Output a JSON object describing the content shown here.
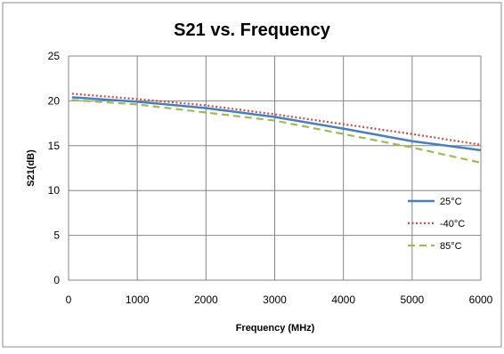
{
  "chart_data": {
    "type": "line",
    "title": "S21 vs. Frequency",
    "xlabel": "Frequency (MHz)",
    "ylabel": "S21(dB)",
    "xlim": [
      0,
      6000
    ],
    "ylim": [
      0,
      25
    ],
    "xticks": [
      0,
      1000,
      2000,
      3000,
      4000,
      5000,
      6000
    ],
    "yticks": [
      0,
      5,
      10,
      15,
      20,
      25
    ],
    "grid": true,
    "legend_position": "right",
    "series": [
      {
        "name": "25°C",
        "color": "#4a7ebb",
        "style": "solid",
        "x": [
          50,
          1000,
          2000,
          3000,
          4000,
          5000,
          6000
        ],
        "y": [
          20.4,
          19.9,
          19.2,
          18.2,
          16.9,
          15.5,
          14.5
        ]
      },
      {
        "name": "-40°C",
        "color": "#c0504d",
        "style": "dotted",
        "x": [
          50,
          1000,
          2000,
          3000,
          4000,
          5000,
          6000
        ],
        "y": [
          20.8,
          20.2,
          19.5,
          18.5,
          17.4,
          16.3,
          15.1
        ]
      },
      {
        "name": "85°C",
        "color": "#9bbb59",
        "style": "dashed",
        "x": [
          50,
          1000,
          2000,
          3000,
          4000,
          5000,
          6000
        ],
        "y": [
          20.1,
          19.6,
          18.7,
          17.8,
          16.3,
          14.8,
          13.1
        ]
      }
    ]
  }
}
